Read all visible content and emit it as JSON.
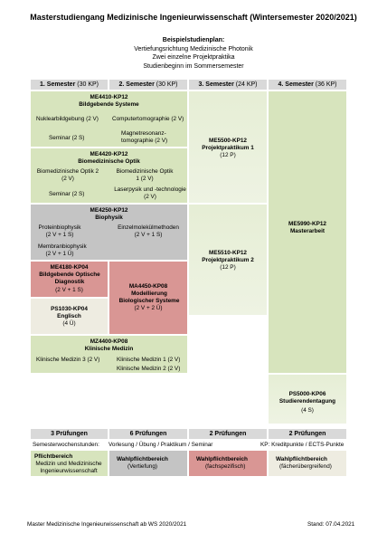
{
  "title": "Masterstudiengang Medizinische Ingenieurwissenschaft (Wintersemester 2020/2021)",
  "subtitle": {
    "heading": "Beispielstudienplan:",
    "lines": [
      "Vertiefungsrichtung Medizinische Photonik",
      "Zwei einzelne Projektpraktika",
      "Studienbeginn im Sommersemester"
    ]
  },
  "semesters": [
    {
      "label": "1. Semester",
      "credits": "(30 KP)"
    },
    {
      "label": "2. Semester",
      "credits": "(30 KP)"
    },
    {
      "label": "3. Semester",
      "credits": "(24 KP)"
    },
    {
      "label": "4. Semester",
      "credits": "(36 KP)"
    }
  ],
  "modules": [
    {
      "code": "ME4410-KP12",
      "name": "Bildgebende Systeme",
      "courses": [
        "Nuklearbildgebung (2 V)",
        "Computertomographie (2 V)",
        "Seminar (2 S)",
        "Magnetresonanz-tomographie (2 V)"
      ]
    },
    {
      "code": "ME4420-KP12",
      "name": "Biomedizinische Optik",
      "courses": [
        "Biomedizinische Optik 2 (2 V)",
        "Biomedizinische Optik 1 (2 V)",
        "Seminar (2 S)",
        "Laserpysik und -technologie (2 V)"
      ]
    },
    {
      "code": "ME4250-KP12",
      "name": "Biophysik",
      "courses": [
        "Proteinbiophysik (2 V + 1 S)",
        "Einzelmolekülmethoden (2 V + 1 S)",
        "Membranbiophysik (2 V + 1 Ü)"
      ]
    },
    {
      "code": "ME4180-KP04",
      "name": "Bildgebende Optische Diagnostik",
      "hours": "(2 V + 1 S)"
    },
    {
      "code": "PS1030-KP04",
      "name": "Englisch",
      "hours": "(4 Ü)"
    },
    {
      "code": "MA4450-KP08",
      "name": "Modellierung Biologischer Systeme",
      "hours": "(2 V + 2 Ü)"
    },
    {
      "code": "MZ4400-KP08",
      "name": "Klinische Medizin",
      "courses": [
        "Klinische Medizin 3 (2 V)",
        "Klinische Medizin 1 (2 V)",
        "Klinische Medizin 2 (2 V)"
      ]
    },
    {
      "code": "ME5500-KP12",
      "name": "Projektpraktikum 1",
      "hours": "(12 P)"
    },
    {
      "code": "ME5510-KP12",
      "name": "Projektpraktikum 2",
      "hours": "(12 P)"
    },
    {
      "code": "ME5990-KP12",
      "name": "Masterarbeit"
    },
    {
      "code": "PS5000-KP06",
      "name": "Studierendentagung",
      "hours": "(4 S)"
    }
  ],
  "exams": [
    "3 Prüfungen",
    "6 Prüfungen",
    "2 Prüfungen",
    "2 Prüfungen"
  ],
  "notes": {
    "sws": "Semesterwochenstunden:",
    "types": "Vorlesung / Übung / Praktikum / Seminar",
    "kp": "KP: Kreditpunkte / ECTS-Punkte"
  },
  "legend": [
    {
      "title": "Pflichtbereich",
      "text": "Medizin und Medizinische Ingenieurwissenschaft"
    },
    {
      "title": "Wahlpflichtbereich",
      "text": "(Vertiefung)"
    },
    {
      "title": "Wahlpflichtbereich",
      "text": "(fachspezifisch)"
    },
    {
      "title": "Wahlpflichtbereich",
      "text": "(fächerübergreifend)"
    }
  ],
  "footer": {
    "left": "Master Medizinische Ingenieurwissenschaft ab WS 2020/2021",
    "right": "Stand: 07.04.2021"
  }
}
